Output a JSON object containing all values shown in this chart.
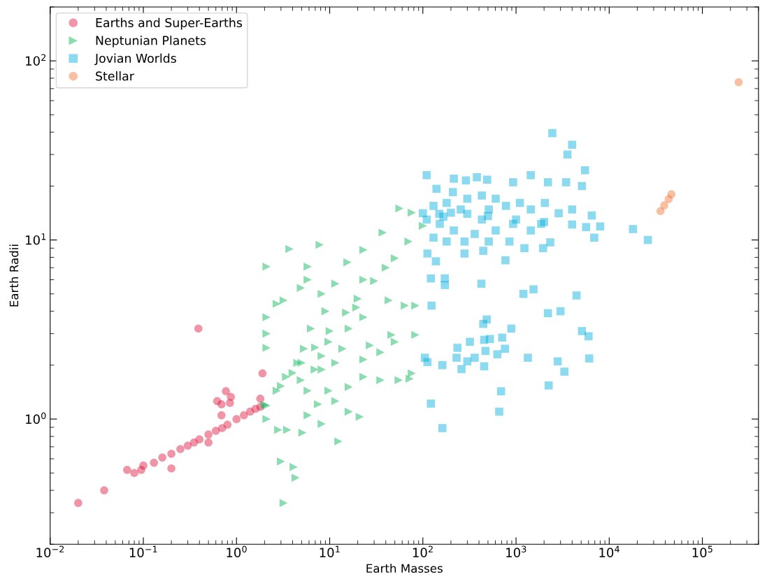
{
  "chart_data": {
    "type": "scatter",
    "xlabel": "Earth Masses",
    "ylabel": "Earth Radii",
    "log": "xy",
    "xlim": [
      0.01,
      400000
    ],
    "ylim": [
      0.2,
      200
    ],
    "xticks": [
      {
        "value": 0.01,
        "label": "10$^{−2}$"
      },
      {
        "value": 0.1,
        "label": "10$^{−1}$"
      },
      {
        "value": 1,
        "label": "10$^{0}$"
      },
      {
        "value": 10,
        "label": "10$^{1}$"
      },
      {
        "value": 100,
        "label": "10$^{2}$"
      },
      {
        "value": 1000,
        "label": "10$^{3}$"
      },
      {
        "value": 10000,
        "label": "10$^{4}$"
      },
      {
        "value": 100000,
        "label": "10$^{5}$"
      }
    ],
    "yticks": [
      {
        "value": 1,
        "label": "10$^{0}$"
      },
      {
        "value": 10,
        "label": "10$^{1}$"
      },
      {
        "value": 100,
        "label": "10$^{2}$"
      }
    ],
    "grid": false,
    "legend": "top left",
    "series": [
      {
        "name": "Earths and Super-Earths",
        "color": "#dc143c",
        "marker": "circle",
        "x": [
          0.02,
          0.038,
          0.067,
          0.08,
          0.095,
          0.1,
          0.13,
          0.16,
          0.2,
          0.2,
          0.25,
          0.3,
          0.35,
          0.4,
          0.5,
          0.6,
          0.7,
          0.8,
          1.0,
          1.2,
          1.4,
          1.6,
          1.8,
          0.39,
          1.9,
          0.77,
          0.62,
          0.69,
          0.87,
          0.85,
          0.69,
          0.5,
          1.8
        ],
        "values": [
          0.34,
          0.4,
          0.52,
          0.5,
          0.52,
          0.55,
          0.57,
          0.61,
          0.53,
          0.64,
          0.68,
          0.71,
          0.74,
          0.77,
          0.82,
          0.86,
          0.89,
          0.93,
          1.0,
          1.05,
          1.1,
          1.14,
          1.17,
          3.2,
          1.8,
          1.43,
          1.26,
          1.21,
          1.33,
          1.23,
          1.05,
          0.74,
          1.3
        ]
      },
      {
        "name": "Neptunian Planets",
        "color": "#00b254",
        "marker": "triangle",
        "x": [
          2,
          3,
          4,
          5,
          7,
          10,
          15,
          20,
          30,
          40,
          50,
          70,
          100,
          3.2,
          3.0,
          4.1,
          4.3,
          12.4,
          2.1,
          2.8,
          3.5,
          5.1,
          8.2,
          21,
          2.1,
          2.1,
          2.1,
          2.1,
          5.8,
          7.8,
          3.7,
          23,
          15.5,
          37,
          56,
          76,
          4.9,
          3.2,
          2.7,
          5.8,
          8.2,
          11.5,
          23,
          43,
          64,
          83,
          46,
          83,
          76,
          72,
          55,
          50,
          35,
          27,
          23,
          16,
          13.7,
          9.7,
          8.2,
          6.9,
          5.3,
          4.5,
          3.4,
          2.7,
          5.8,
          9.7,
          16,
          23,
          35,
          7.5,
          11.5,
          16,
          5.8,
          4.9,
          23,
          6.3,
          9,
          19.3,
          8.2,
          11.5,
          2.1
        ],
        "values": [
          1.2,
          1.53,
          1.81,
          2.06,
          2.51,
          3.1,
          3.93,
          4.7,
          5.9,
          7.0,
          7.9,
          9.8,
          12.0,
          0.34,
          0.58,
          0.54,
          0.47,
          0.75,
          1.0,
          0.87,
          0.87,
          0.84,
          0.94,
          1.03,
          3.0,
          1.19,
          2.5,
          7.1,
          7.1,
          9.4,
          8.9,
          8.8,
          7.5,
          11,
          15,
          14.2,
          5.4,
          4.6,
          4.4,
          6.0,
          5.0,
          5.7,
          6.0,
          4.6,
          4.3,
          4.3,
          2.95,
          2.95,
          1.8,
          1.68,
          1.65,
          2.7,
          2.36,
          2.58,
          3.7,
          3.2,
          2.47,
          2.7,
          2.25,
          1.89,
          2.47,
          2.06,
          1.72,
          1.44,
          1.44,
          1.44,
          1.51,
          1.72,
          1.65,
          1.21,
          1.26,
          1.1,
          1.05,
          1.65,
          2.15,
          3.2,
          4.0,
          4.2,
          1.89,
          2.06,
          3.7
        ]
      },
      {
        "name": "Jovian Worlds",
        "color": "#00aedb",
        "marker": "square",
        "x": [
          110,
          150,
          200,
          300,
          500,
          1000,
          2000,
          4000,
          8000,
          2450,
          4000,
          3560,
          5500,
          5100,
          3450,
          6500,
          18000,
          26000,
          110,
          1440,
          2200,
          930,
          138,
          770,
          445,
          280,
          1230,
          1950,
          2330,
          6900,
          112,
          122,
          172,
          172,
          425,
          1200,
          1540,
          4460,
          124,
          2200,
          3000,
          485,
          445,
          5100,
          6000,
          890,
          235,
          320,
          455,
          525,
          710,
          760,
          630,
          470,
          360,
          230,
          300,
          260,
          455,
          162,
          105,
          112,
          1340,
          2800,
          6100,
          3300,
          2240,
          690,
          122,
          660,
          162,
          140,
          215,
          290,
          380,
          490,
          210,
          300,
          430,
          605,
          180,
          130,
          255,
          510,
          780,
          1100,
          1440,
          2040,
          2870,
          4000,
          152,
          215,
          360,
          605,
          930,
          1440,
          180,
          280,
          510,
          130,
          100,
          166,
          430,
          850,
          1860,
          5650
        ],
        "values": [
          13,
          14,
          14.2,
          14,
          13.6,
          13,
          12.6,
          12.2,
          11.9,
          39.5,
          34,
          30,
          24.5,
          20,
          21,
          13.7,
          11.5,
          10,
          23,
          23,
          21,
          21,
          7.6,
          7.7,
          8.7,
          8.4,
          9.0,
          9.0,
          9.7,
          10.3,
          8.4,
          6.1,
          6.1,
          5.6,
          5.7,
          5.0,
          5.3,
          4.9,
          4.3,
          3.9,
          4.0,
          3.6,
          3.4,
          3.1,
          2.9,
          3.2,
          2.5,
          2.7,
          2.77,
          2.8,
          2.85,
          2.47,
          2.3,
          2.4,
          2.2,
          2.2,
          2.1,
          1.9,
          1.97,
          2.0,
          2.2,
          2.08,
          2.2,
          2.1,
          2.18,
          1.84,
          1.54,
          1.43,
          1.22,
          1.1,
          0.89,
          19.3,
          22,
          21.5,
          22.4,
          21.7,
          18.5,
          17,
          17.7,
          17,
          16.1,
          15.5,
          14.8,
          14.8,
          15.5,
          16.1,
          14.8,
          16.1,
          14.1,
          14.8,
          12.3,
          11.3,
          10.8,
          11.3,
          12.3,
          11.3,
          9.8,
          9.8,
          9.8,
          10.3,
          14.1,
          13.5,
          13,
          9.8,
          12.3,
          11.8
        ]
      },
      {
        "name": "Stellar",
        "color": "#f07030",
        "marker": "circle",
        "x": [
          35500,
          39000,
          43500,
          46500,
          245000
        ],
        "values": [
          14.5,
          15.6,
          16.9,
          18,
          76
        ]
      }
    ]
  }
}
